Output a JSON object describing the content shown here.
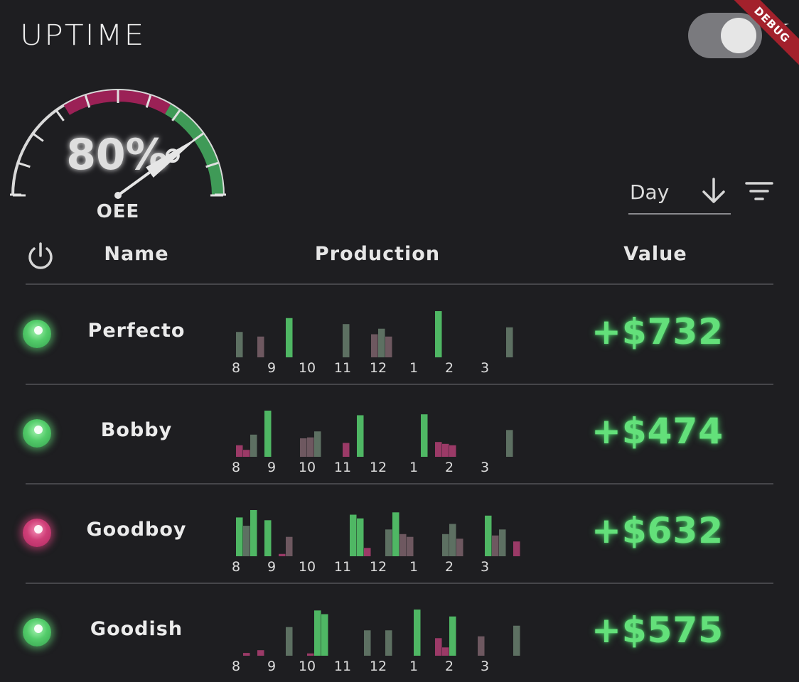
{
  "app": {
    "title": "UPTIME",
    "debug_banner": "DEBUG"
  },
  "theme_toggle": {
    "state": "dark"
  },
  "gauge": {
    "value": 80,
    "value_text": "80%",
    "label": "OEE"
  },
  "sort": {
    "selected": "Day",
    "direction": "descending"
  },
  "table": {
    "columns": {
      "name": "Name",
      "production": "Production",
      "value": "Value"
    },
    "hours": [
      "8",
      "9",
      "10",
      "11",
      "12",
      "1",
      "2",
      "3"
    ],
    "rows": [
      {
        "name": "Perfecto",
        "status": "ok",
        "value": "+$732",
        "bars": [
          {
            "slot": 1,
            "h": 0.55,
            "color": "#5d7062"
          },
          {
            "slot": 4,
            "h": 0.45,
            "color": "#6e5860"
          },
          {
            "slot": 8,
            "h": 0.85,
            "color": "#4fb764"
          },
          {
            "slot": 16,
            "h": 0.72,
            "color": "#5d7062"
          },
          {
            "slot": 20,
            "h": 0.5,
            "color": "#6e5860"
          },
          {
            "slot": 21,
            "h": 0.62,
            "color": "#5d7062"
          },
          {
            "slot": 22,
            "h": 0.45,
            "color": "#6e5860"
          },
          {
            "slot": 29,
            "h": 1.0,
            "color": "#4fb764"
          },
          {
            "slot": 39,
            "h": 0.65,
            "color": "#5d7062"
          }
        ]
      },
      {
        "name": "Bobby",
        "status": "ok",
        "value": "+$474",
        "bars": [
          {
            "slot": 1,
            "h": 0.25,
            "color": "#9b3a67"
          },
          {
            "slot": 2,
            "h": 0.15,
            "color": "#9b3a67"
          },
          {
            "slot": 3,
            "h": 0.48,
            "color": "#5d7062"
          },
          {
            "slot": 5,
            "h": 1.0,
            "color": "#4fb764"
          },
          {
            "slot": 10,
            "h": 0.4,
            "color": "#6e5860"
          },
          {
            "slot": 11,
            "h": 0.42,
            "color": "#6e5860"
          },
          {
            "slot": 12,
            "h": 0.55,
            "color": "#5d7062"
          },
          {
            "slot": 16,
            "h": 0.3,
            "color": "#9b3a67"
          },
          {
            "slot": 18,
            "h": 0.9,
            "color": "#4fb764"
          },
          {
            "slot": 27,
            "h": 0.92,
            "color": "#4fb764"
          },
          {
            "slot": 29,
            "h": 0.32,
            "color": "#9b3a67"
          },
          {
            "slot": 30,
            "h": 0.28,
            "color": "#9b3a67"
          },
          {
            "slot": 31,
            "h": 0.25,
            "color": "#9b3a67"
          },
          {
            "slot": 39,
            "h": 0.58,
            "color": "#5d7062"
          }
        ]
      },
      {
        "name": "Goodboy",
        "status": "bad",
        "value": "+$632",
        "bars": [
          {
            "slot": 1,
            "h": 0.84,
            "color": "#4fb764"
          },
          {
            "slot": 2,
            "h": 0.66,
            "color": "#5d7062"
          },
          {
            "slot": 3,
            "h": 1.0,
            "color": "#4fb764"
          },
          {
            "slot": 5,
            "h": 0.78,
            "color": "#4fb764"
          },
          {
            "slot": 7,
            "h": 0.05,
            "color": "#9b3a67"
          },
          {
            "slot": 8,
            "h": 0.42,
            "color": "#6e5860"
          },
          {
            "slot": 17,
            "h": 0.9,
            "color": "#4fb764"
          },
          {
            "slot": 18,
            "h": 0.82,
            "color": "#4fb764"
          },
          {
            "slot": 19,
            "h": 0.18,
            "color": "#9b3a67"
          },
          {
            "slot": 22,
            "h": 0.58,
            "color": "#5d7062"
          },
          {
            "slot": 23,
            "h": 0.95,
            "color": "#4fb764"
          },
          {
            "slot": 24,
            "h": 0.48,
            "color": "#6e5860"
          },
          {
            "slot": 25,
            "h": 0.42,
            "color": "#6e5860"
          },
          {
            "slot": 30,
            "h": 0.48,
            "color": "#5d7062"
          },
          {
            "slot": 31,
            "h": 0.7,
            "color": "#5d7062"
          },
          {
            "slot": 32,
            "h": 0.38,
            "color": "#6e5860"
          },
          {
            "slot": 36,
            "h": 0.88,
            "color": "#4fb764"
          },
          {
            "slot": 37,
            "h": 0.45,
            "color": "#6e5860"
          },
          {
            "slot": 38,
            "h": 0.58,
            "color": "#5d7062"
          },
          {
            "slot": 40,
            "h": 0.32,
            "color": "#9b3a67"
          }
        ]
      },
      {
        "name": "Goodish",
        "status": "ok",
        "value": "+$575",
        "bars": [
          {
            "slot": 2,
            "h": 0.06,
            "color": "#9b3a67"
          },
          {
            "slot": 4,
            "h": 0.12,
            "color": "#9b3a67"
          },
          {
            "slot": 8,
            "h": 0.62,
            "color": "#5d7062"
          },
          {
            "slot": 11,
            "h": 0.05,
            "color": "#9b3a67"
          },
          {
            "slot": 12,
            "h": 0.98,
            "color": "#4fb764"
          },
          {
            "slot": 13,
            "h": 0.9,
            "color": "#4fb764"
          },
          {
            "slot": 19,
            "h": 0.55,
            "color": "#5d7062"
          },
          {
            "slot": 22,
            "h": 0.55,
            "color": "#5d7062"
          },
          {
            "slot": 26,
            "h": 1.0,
            "color": "#4fb764"
          },
          {
            "slot": 29,
            "h": 0.38,
            "color": "#9b3a67"
          },
          {
            "slot": 30,
            "h": 0.18,
            "color": "#9b3a67"
          },
          {
            "slot": 31,
            "h": 0.85,
            "color": "#4fb764"
          },
          {
            "slot": 35,
            "h": 0.42,
            "color": "#6e5860"
          },
          {
            "slot": 40,
            "h": 0.65,
            "color": "#5d7062"
          }
        ]
      }
    ]
  }
}
